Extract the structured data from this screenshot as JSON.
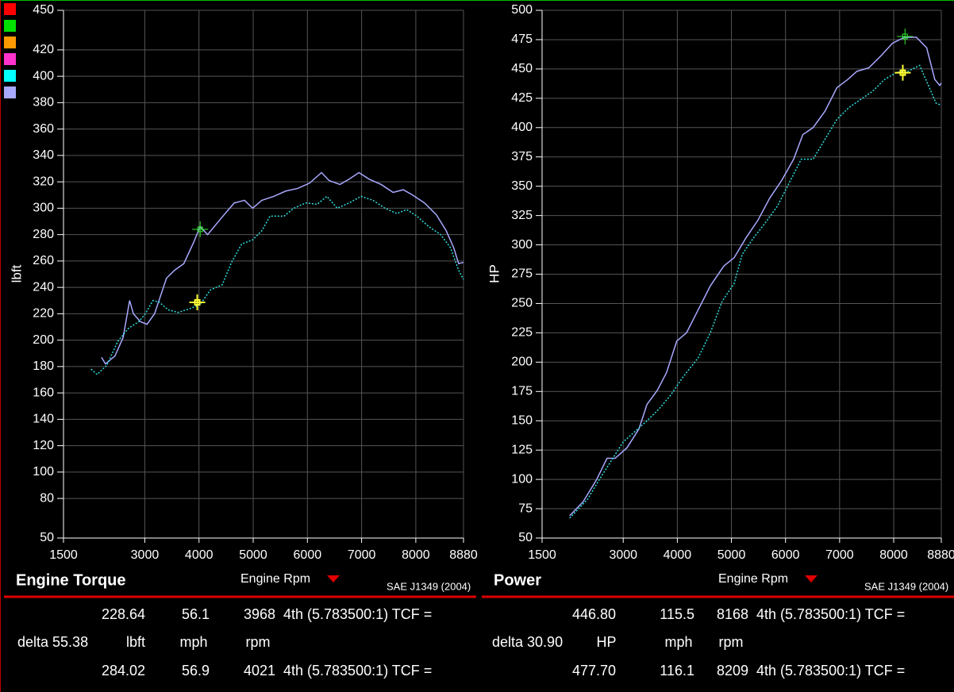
{
  "swatches": [
    "#ff0000",
    "#00e000",
    "#ff9900",
    "#ff33cc",
    "#00ffff",
    "#a8a8ff"
  ],
  "chart_data": [
    {
      "type": "line",
      "title": "Engine Torque",
      "x_label": "Engine Rpm",
      "y_label": "lbft",
      "standard": "SAE J1349 (2004)",
      "xlim": [
        1500,
        8880
      ],
      "xticks": [
        1500,
        3000,
        4000,
        5000,
        6000,
        7000,
        8000,
        8880
      ],
      "ylim": [
        50,
        450
      ],
      "yticks": [
        50,
        80,
        100,
        120,
        140,
        160,
        180,
        200,
        220,
        240,
        260,
        280,
        300,
        320,
        340,
        360,
        380,
        400,
        420,
        450
      ],
      "grid": true,
      "series": [
        {
          "color": "#a8a8ff",
          "style": "solid",
          "x": [
            2200,
            2275,
            2450,
            2600,
            2720,
            2790,
            2920,
            3040,
            3180,
            3400,
            3550,
            3720,
            3900,
            4020,
            4160,
            4400,
            4650,
            4840,
            4990,
            5160,
            5380,
            5600,
            5820,
            6040,
            6260,
            6400,
            6600,
            6770,
            6950,
            7140,
            7360,
            7580,
            7770,
            7940,
            8160,
            8380,
            8560,
            8700,
            8790,
            8880
          ],
          "values": [
            187,
            182,
            188,
            202,
            230,
            220,
            214,
            212,
            220,
            247,
            253,
            258,
            274,
            286,
            280,
            292,
            304,
            306,
            300,
            306,
            309,
            313,
            315,
            319,
            327,
            321,
            318,
            322,
            327,
            322,
            318,
            312,
            314,
            310,
            304,
            295,
            283,
            270,
            258,
            259
          ]
        },
        {
          "color": "#30e0e0",
          "style": "dotted",
          "x": [
            2010,
            2120,
            2300,
            2500,
            2700,
            2890,
            3010,
            3150,
            3260,
            3430,
            3620,
            3840,
            4020,
            4210,
            4430,
            4600,
            4790,
            4990,
            5160,
            5310,
            5570,
            5750,
            5970,
            6180,
            6360,
            6550,
            6770,
            6990,
            7210,
            7430,
            7650,
            7830,
            8020,
            8240,
            8460,
            8640,
            8790,
            8880
          ],
          "values": [
            178,
            174,
            181,
            199,
            209,
            214,
            220,
            230,
            229,
            223,
            221,
            224,
            227,
            238,
            242,
            259,
            273,
            276,
            283,
            294,
            294,
            300,
            304,
            303,
            309,
            300,
            304,
            309,
            306,
            300,
            296,
            299,
            294,
            286,
            280,
            270,
            253,
            246
          ]
        }
      ]
    },
    {
      "type": "line",
      "title": "Power",
      "x_label": "Engine Rpm",
      "y_label": "HP",
      "standard": "SAE J1349 (2004)",
      "xlim": [
        1500,
        8880
      ],
      "xticks": [
        1500,
        3000,
        4000,
        5000,
        6000,
        7000,
        8000,
        8880
      ],
      "ylim": [
        50,
        500
      ],
      "yticks": [
        50,
        75,
        100,
        125,
        150,
        175,
        200,
        225,
        250,
        275,
        300,
        325,
        350,
        375,
        400,
        425,
        450,
        475,
        500
      ],
      "grid": true,
      "series": [
        {
          "color": "#a8a8ff",
          "style": "solid",
          "x": [
            2010,
            2260,
            2510,
            2700,
            2850,
            3070,
            3290,
            3440,
            3630,
            3800,
            3990,
            4170,
            4390,
            4610,
            4860,
            5050,
            5270,
            5490,
            5710,
            5930,
            6150,
            6320,
            6510,
            6730,
            6950,
            7150,
            7320,
            7540,
            7760,
            7980,
            8200,
            8420,
            8610,
            8760,
            8850,
            8880
          ],
          "values": [
            69,
            81,
            100,
            118,
            118,
            127,
            143,
            164,
            176,
            191,
            218,
            225,
            245,
            265,
            282,
            289,
            306,
            321,
            340,
            355,
            373,
            394,
            400,
            414,
            434,
            441,
            448,
            451,
            461,
            472,
            477,
            477,
            468,
            441,
            436,
            438
          ]
        },
        {
          "color": "#30e0e0",
          "style": "dotted",
          "x": [
            2010,
            2340,
            2560,
            2780,
            3000,
            3220,
            3440,
            3660,
            3880,
            4100,
            4390,
            4610,
            4830,
            5050,
            5200,
            5410,
            5630,
            5850,
            6070,
            6290,
            6510,
            6730,
            6950,
            7170,
            7390,
            7610,
            7830,
            8050,
            8260,
            8480,
            8660,
            8780,
            8880
          ],
          "values": [
            67,
            83,
            100,
            116,
            132,
            141,
            150,
            160,
            172,
            187,
            204,
            225,
            252,
            267,
            292,
            306,
            319,
            333,
            353,
            373,
            373,
            390,
            407,
            417,
            424,
            431,
            441,
            447,
            448,
            453,
            434,
            421,
            419
          ]
        }
      ]
    }
  ],
  "readouts": [
    {
      "selected": {
        "color": "#ffff33",
        "value": "228.64",
        "speed": "56.1",
        "rpm": "3968",
        "gear": "4th (5.783500:1) TCF ="
      },
      "delta": {
        "color": "#33ddff",
        "text": "delta 55.38"
      },
      "units": {
        "value": "lbft",
        "speed": "mph",
        "rpm": "rpm"
      },
      "reference": {
        "color": "#33ee33",
        "value": "284.02",
        "speed": "56.9",
        "rpm": "4021",
        "gear": "4th (5.783500:1) TCF ="
      }
    },
    {
      "selected": {
        "color": "#ffff33",
        "value": "446.80",
        "speed": "115.5",
        "rpm": "8168",
        "gear": "4th (5.783500:1) TCF ="
      },
      "delta": {
        "color": "#33ddff",
        "text": "delta 30.90"
      },
      "units": {
        "value": "HP",
        "speed": "mph",
        "rpm": "rpm"
      },
      "reference": {
        "color": "#33ee33",
        "value": "477.70",
        "speed": "116.1",
        "rpm": "8209",
        "gear": "4th (5.783500:1) TCF ="
      }
    }
  ]
}
